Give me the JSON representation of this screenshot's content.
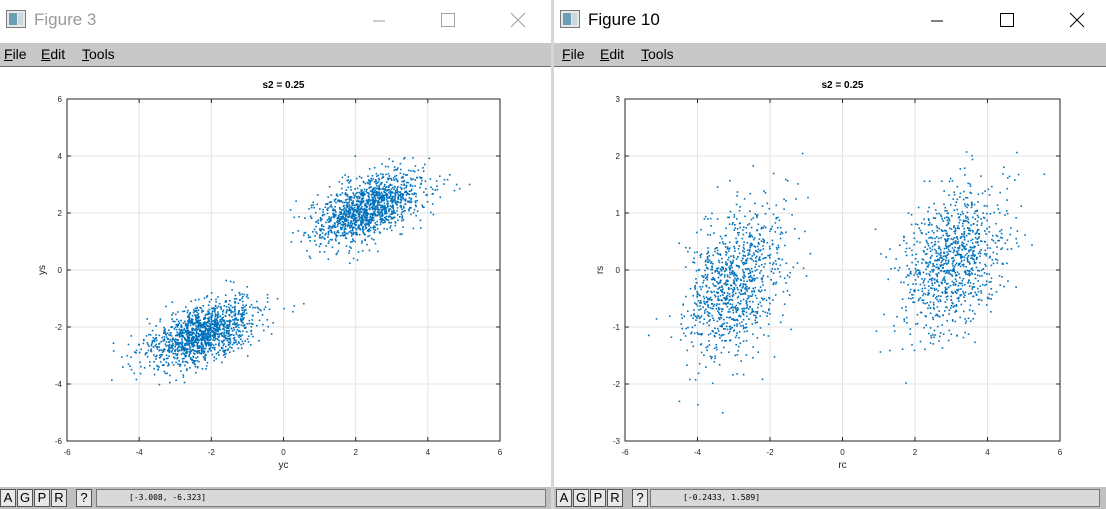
{
  "windows": [
    {
      "title": "Figure 3",
      "menu": [
        {
          "label": "File",
          "underline": "F",
          "rest": "ile"
        },
        {
          "label": "Edit",
          "underline": "E",
          "rest": "dit"
        },
        {
          "label": "Tools",
          "underline": "T",
          "rest": "ools"
        }
      ],
      "status": {
        "buttons": [
          "A",
          "G",
          "P",
          "R",
          "?"
        ],
        "coords": "[-3.008, -6.323]"
      },
      "chart_data": {
        "type": "scatter",
        "title": "s2 = 0.25",
        "xlabel": "yc",
        "ylabel": "ys",
        "xlim": [
          -6,
          6
        ],
        "ylim": [
          -6,
          6
        ],
        "xticks": [
          -6,
          -4,
          -2,
          0,
          2,
          4,
          6
        ],
        "yticks": [
          -6,
          -4,
          -2,
          0,
          2,
          4,
          6
        ],
        "grid": true,
        "marker_color": "#0072bd",
        "clusters": [
          {
            "center": [
              -2.3,
              -2.2
            ],
            "spread": [
              0.75,
              0.6
            ],
            "correlation": 0.55,
            "count": 1400
          },
          {
            "center": [
              2.3,
              2.2
            ],
            "spread": [
              0.75,
              0.6
            ],
            "correlation": 0.55,
            "count": 1400
          }
        ]
      }
    },
    {
      "title": "Figure 10",
      "menu": [
        {
          "label": "File",
          "underline": "F",
          "rest": "ile"
        },
        {
          "label": "Edit",
          "underline": "E",
          "rest": "dit"
        },
        {
          "label": "Tools",
          "underline": "T",
          "rest": "ools"
        }
      ],
      "status": {
        "buttons": [
          "A",
          "G",
          "P",
          "R",
          "?"
        ],
        "coords": "[-0.2433, 1.589]"
      },
      "chart_data": {
        "type": "scatter",
        "title": "s2 = 0.25",
        "xlabel": "rc",
        "ylabel": "rs",
        "xlim": [
          -6,
          6
        ],
        "ylim": [
          -3,
          3
        ],
        "xticks": [
          -6,
          -4,
          -2,
          0,
          2,
          4,
          6
        ],
        "yticks": [
          -3,
          -2,
          -1,
          0,
          1,
          2,
          3
        ],
        "grid": true,
        "marker_color": "#0072bd",
        "clusters": [
          {
            "center": [
              -3.0,
              -0.2
            ],
            "spread": [
              0.7,
              0.65
            ],
            "correlation": 0.3,
            "count": 1000
          },
          {
            "center": [
              3.0,
              0.2
            ],
            "spread": [
              0.7,
              0.65
            ],
            "correlation": 0.3,
            "count": 1000
          }
        ]
      }
    }
  ]
}
